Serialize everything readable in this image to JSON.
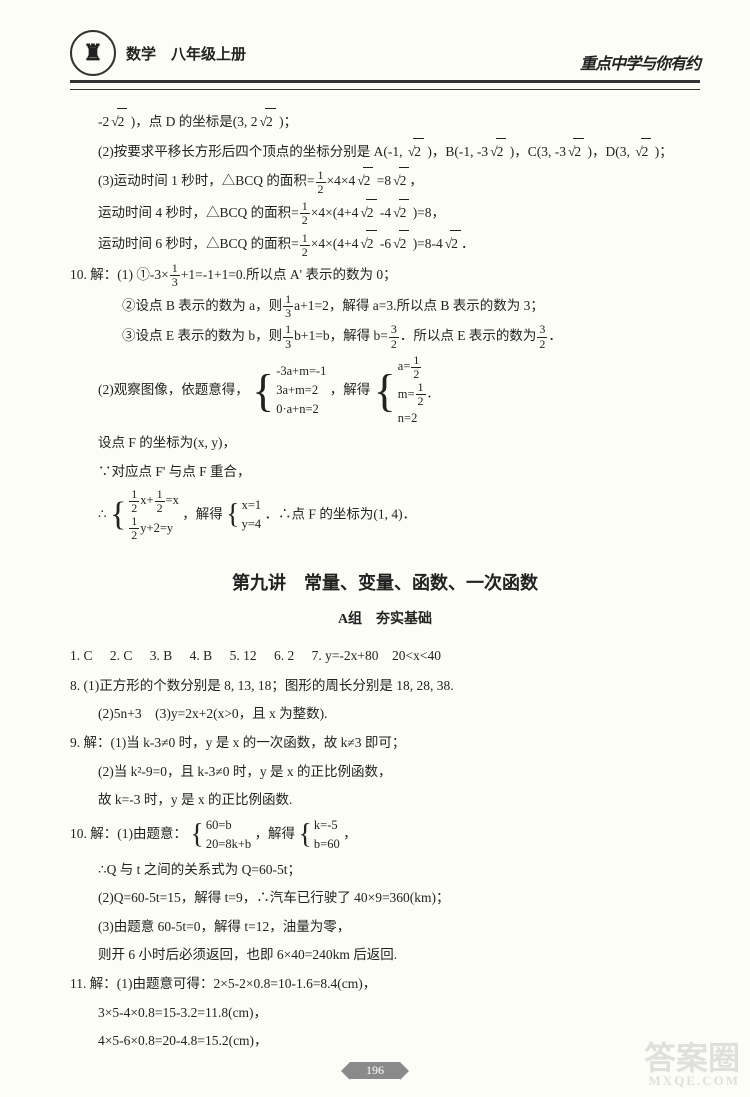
{
  "header": {
    "left": "数学　八年级上册",
    "right": "重点中学与你有约",
    "logo_glyph": "♜"
  },
  "body": {
    "p1": "-2",
    "p1a": " )，点 D 的坐标是(3, 2",
    "p1b": " )；",
    "p2a": "(2)按要求平移长方形后四个顶点的坐标分别是 A(-1, ",
    "p2b": " )，B(-1, -3",
    "p2c": " )，C(3, -3",
    "p2d": " )，D(3, ",
    "p2e": " )；",
    "p3a": "(3)运动时间 1 秒时，△BCQ 的面积=",
    "p3b": "×4×4",
    "p3c": " =8",
    "p3d": "，",
    "p4a": "运动时间 4 秒时，△BCQ 的面积=",
    "p4b": "×4×(4+4",
    "p4c": " -4",
    "p4d": " )=8，",
    "p5a": "运动时间 6 秒时，△BCQ 的面积=",
    "p5b": "×4×(4+4",
    "p5c": " -6",
    "p5d": " )=8-4",
    "p5e": "．",
    "q10": "10. 解：(1) ①-3×",
    "q10a": "+1=-1+1=0.所以点 A' 表示的数为 0；",
    "q10b": "②设点 B 表示的数为 a，则",
    "q10c": "a+1=2，解得 a=3.所以点 B 表示的数为 3；",
    "q10d": "③设点 E 表示的数为 b，则",
    "q10e": "b+1=b，解得 b=",
    "q10f": "．所以点 E 表示的数为",
    "q10g": "．",
    "q10h": "(2)观察图像，依题意得，",
    "sys1_l1": "-3a+m=-1",
    "sys1_l2": "3a+m=2",
    "sys1_l3": "0·a+n=2",
    "sys1_mid": "，解得",
    "sys2_l1a": "a=",
    "sys2_l1b_num": "1",
    "sys2_l1b_den": "2",
    "sys2_l2a": "m=",
    "sys2_l2b_num": "1",
    "sys2_l2b_den": "2",
    "sys2_l3": "n=2",
    "q10i": "设点 F 的坐标为(x, y)，",
    "q10j": "∵对应点 F' 与点 F 重合，",
    "sys3_l1a_num": "1",
    "sys3_l1a_den": "2",
    "sys3_l1b": "x+",
    "sys3_l1c_num": "1",
    "sys3_l1c_den": "2",
    "sys3_l1d": "=x",
    "sys3_l2a_num": "1",
    "sys3_l2a_den": "2",
    "sys3_l2b": "y+2=y",
    "sys3_mid": "，解得",
    "sys4_l1": "x=1",
    "sys4_l2": "y=4",
    "q10k": "．∴点 F 的坐标为(1, 4)．",
    "sec_title": "第九讲　常量、变量、函数、一次函数",
    "sec_sub": "A组　夯实基础",
    "row1_1": "1. C",
    "row1_2": "2. C",
    "row1_3": "3. B",
    "row1_4": "4. B",
    "row1_5": "5. 12",
    "row1_6": "6. 2",
    "row1_7": "7. y=-2x+80　20<x<40",
    "p8a": "8. (1)正方形的个数分别是 8, 13, 18；图形的周长分别是 18, 28, 38.",
    "p8b": "(2)5n+3　(3)y=2x+2(x>0，且 x 为整数).",
    "p9a": "9. 解：(1)当 k-3≠0 时，y 是 x 的一次函数，故 k≠3 即可；",
    "p9b": "(2)当 k²-9=0，且 k-3≠0 时，y 是 x 的正比例函数，",
    "p9c": "故 k=-3 时，y 是 x 的正比例函数.",
    "p10a": "10. 解：(1)由题意：",
    "sys5_l1": "60=b",
    "sys5_l2": "20=8k+b",
    "p10mid": "，解得",
    "sys6_l1": "k=-5",
    "sys6_l2": "b=60",
    "p10end": "，",
    "p10b": "∴Q 与 t 之间的关系式为 Q=60-5t；",
    "p10c": "(2)Q=60-5t=15，解得 t=9，∴汽车已行驶了 40×9=360(km)；",
    "p10d": "(3)由题意 60-5t=0，解得 t=12，油量为零，",
    "p10e": "则开 6 小时后必须返回，也即 6×40=240km 后返回.",
    "p11a": "11. 解：(1)由题意可得：2×5-2×0.8=10-1.6=8.4(cm)，",
    "p11b": "3×5-4×0.8=15-3.2=11.8(cm)，",
    "p11c": "4×5-6×0.8=20-4.8=15.2(cm)，",
    "pagenum": "196",
    "wm_big": "答案圈",
    "wm_small": "MXQE.COM",
    "half_num": "1",
    "half_den": "2",
    "third_num": "1",
    "third_den": "3",
    "threehalf_num": "3",
    "threehalf_den": "2",
    "root2": "2"
  }
}
